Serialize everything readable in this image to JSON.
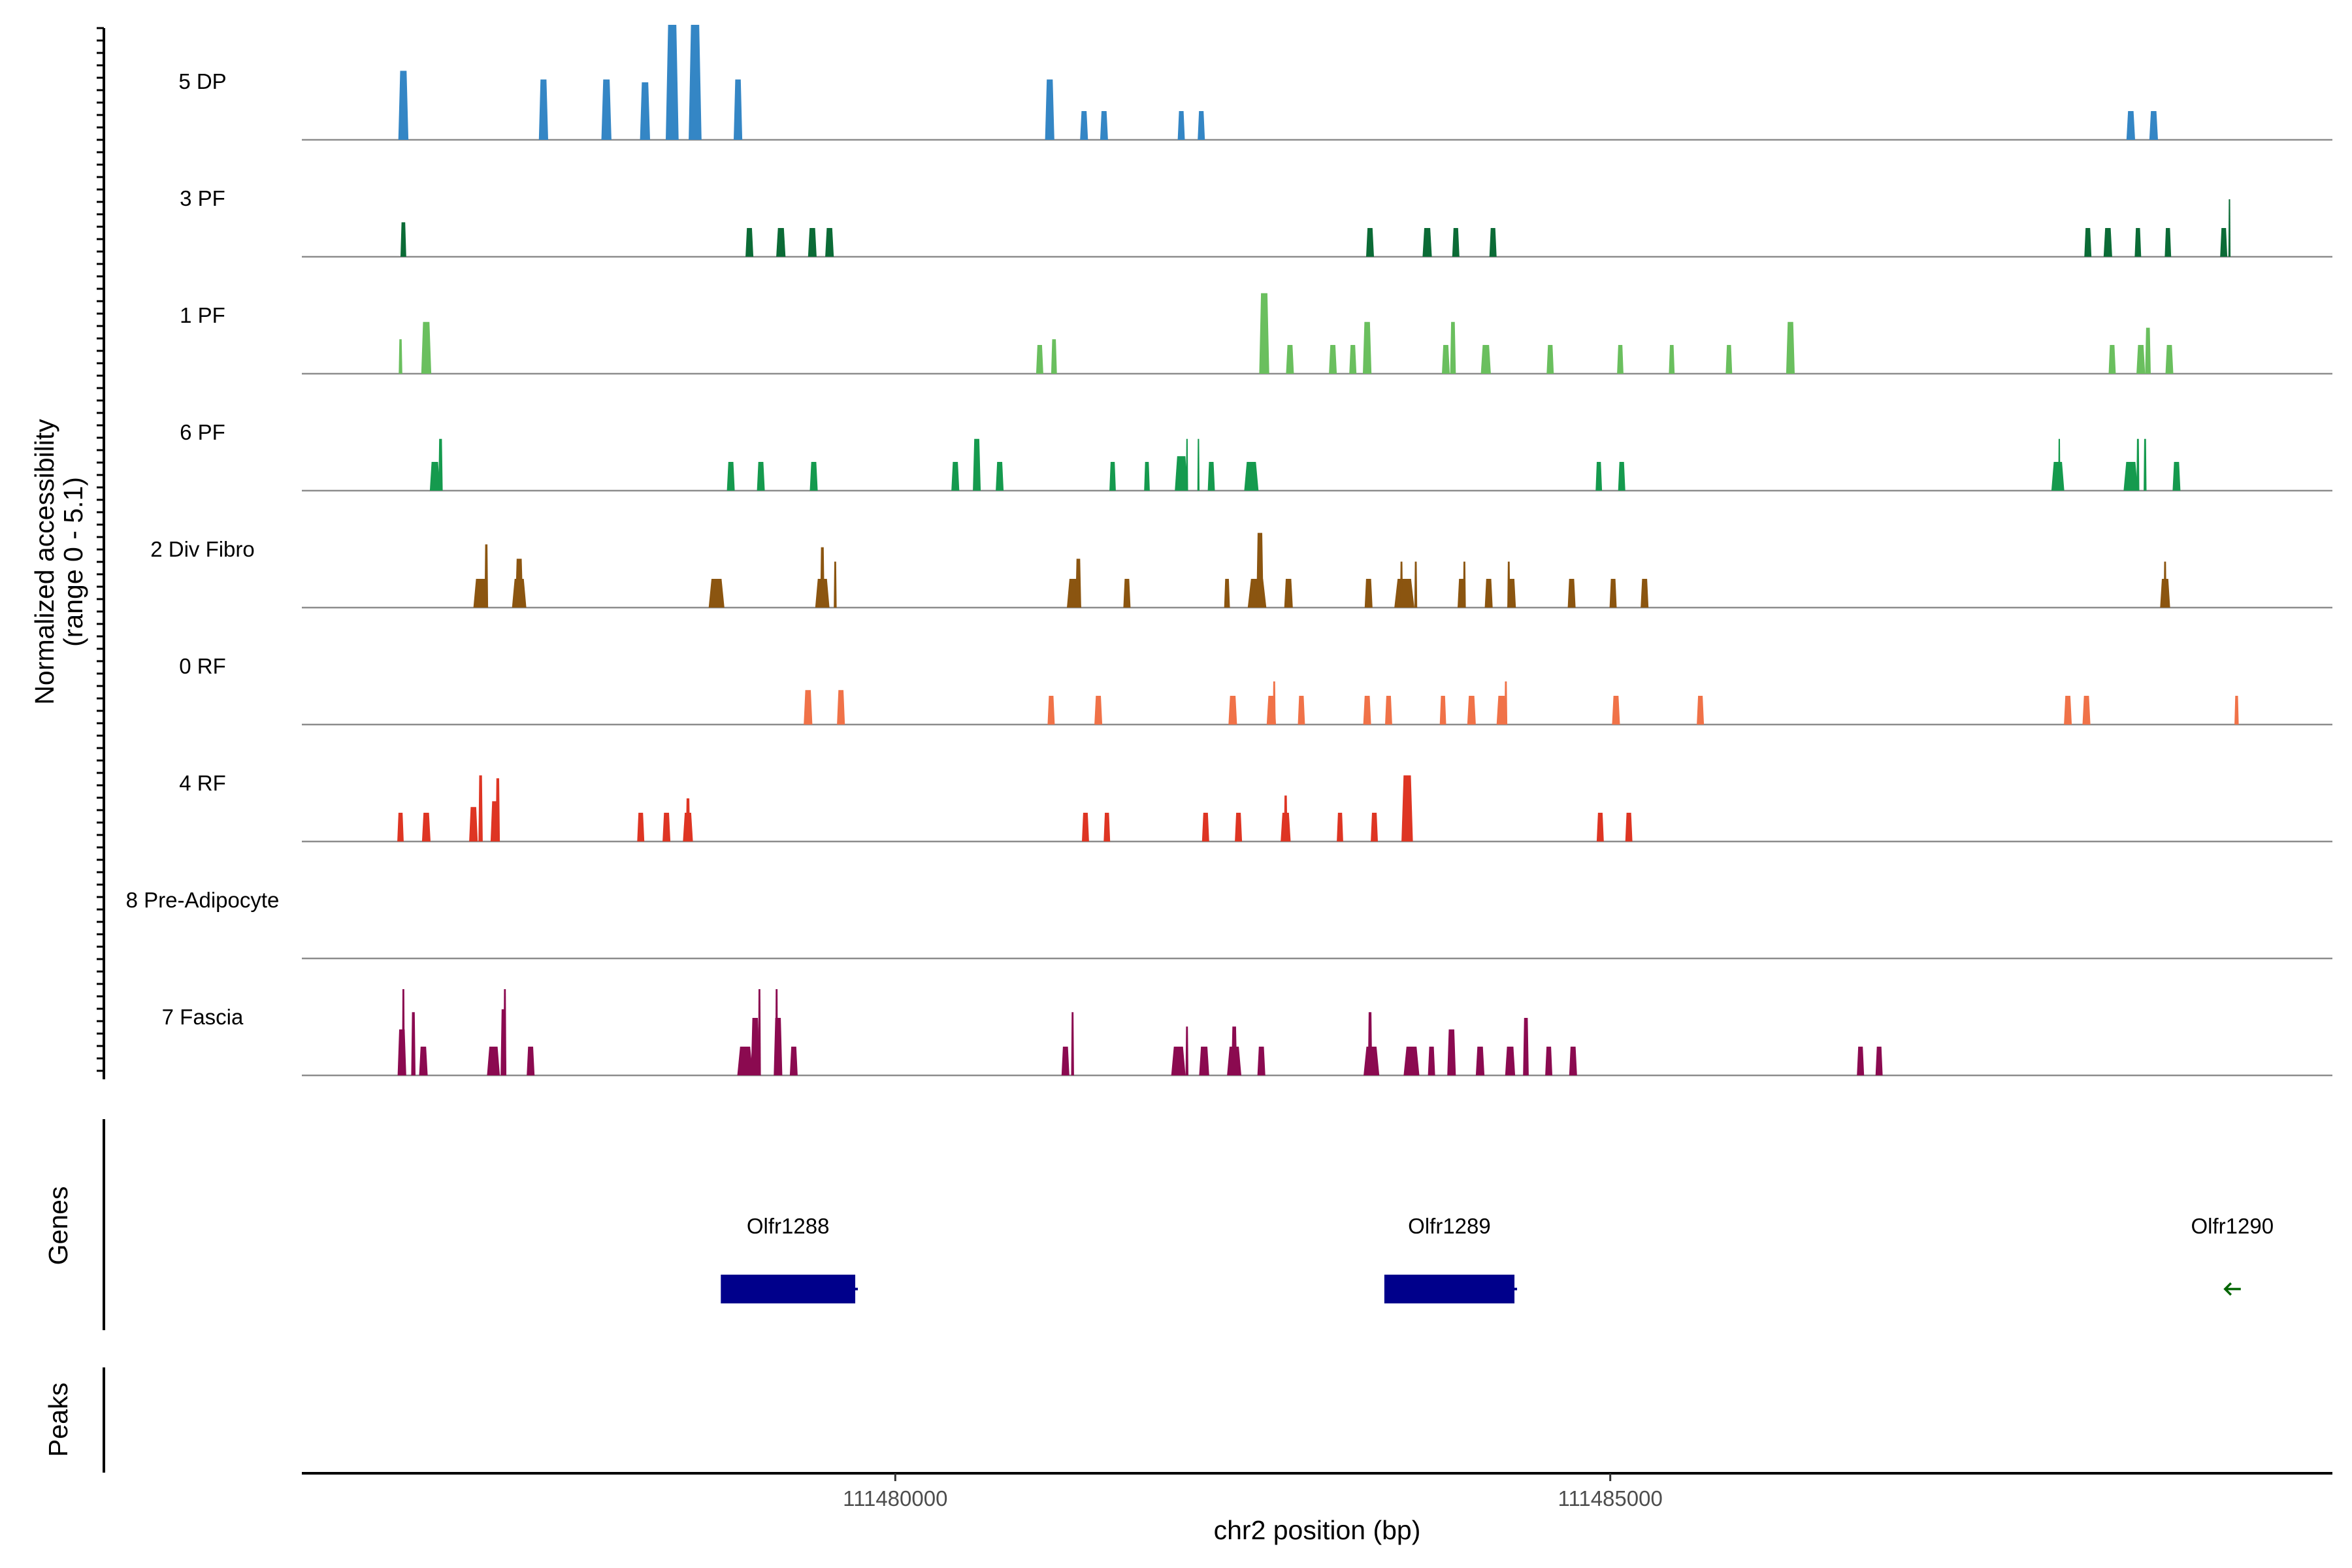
{
  "chart_data": {
    "type": "area",
    "title": "",
    "ylabel": "Normalized accessibility",
    "ylabel_range": "(range 0 - 5.1)",
    "xlabel": "chr2 position (bp)",
    "xlim": [
      111475850,
      111490050
    ],
    "ylim": [
      0,
      5.1
    ],
    "x_ticks": [
      111480000,
      111485000
    ],
    "x_tick_labels": [
      "111480000",
      "111485000"
    ],
    "tracks": [
      {
        "name": "5 DP",
        "color": "#3486C5",
        "peaks": [
          [
            111476560,
            70,
            2.4
          ],
          [
            111477540,
            65,
            2.1
          ],
          [
            111477980,
            70,
            2.1
          ],
          [
            111478250,
            70,
            2.0
          ],
          [
            111478440,
            90,
            4.0
          ],
          [
            111478600,
            90,
            4.0
          ],
          [
            111478900,
            60,
            2.1
          ],
          [
            111481080,
            65,
            2.1
          ],
          [
            111481320,
            55,
            1.0
          ],
          [
            111481460,
            55,
            1.0
          ],
          [
            111482000,
            50,
            1.0
          ],
          [
            111482140,
            50,
            1.0
          ],
          [
            111488640,
            60,
            1.0
          ],
          [
            111488800,
            60,
            1.0
          ]
        ]
      },
      {
        "name": "3 PF",
        "color": "#0B6B36",
        "peaks": [
          [
            111476560,
            40,
            1.2
          ],
          [
            111478980,
            55,
            1.0
          ],
          [
            111479200,
            65,
            1.0
          ],
          [
            111479420,
            60,
            1.0
          ],
          [
            111479540,
            60,
            1.0
          ],
          [
            111483320,
            55,
            1.0
          ],
          [
            111483720,
            65,
            1.0
          ],
          [
            111483920,
            50,
            1.0
          ],
          [
            111484180,
            50,
            1.0
          ],
          [
            111488340,
            50,
            1.0
          ],
          [
            111488480,
            60,
            1.0
          ],
          [
            111488690,
            45,
            1.0
          ],
          [
            111488900,
            45,
            1.0
          ],
          [
            111489290,
            50,
            1.0
          ],
          [
            111489330,
            15,
            2.0
          ]
        ]
      },
      {
        "name": "1 PF",
        "color": "#6ABF5E",
        "peaks": [
          [
            111476540,
            25,
            1.2
          ],
          [
            111476720,
            70,
            1.8
          ],
          [
            111481010,
            50,
            1.0
          ],
          [
            111481110,
            40,
            1.2
          ],
          [
            111482580,
            70,
            2.8
          ],
          [
            111482760,
            55,
            1.0
          ],
          [
            111483060,
            55,
            1.0
          ],
          [
            111483200,
            50,
            1.0
          ],
          [
            111483300,
            60,
            1.8
          ],
          [
            111483850,
            55,
            1.0
          ],
          [
            111483900,
            40,
            1.8
          ],
          [
            111484130,
            70,
            1.0
          ],
          [
            111484580,
            50,
            1.0
          ],
          [
            111485070,
            45,
            1.0
          ],
          [
            111485430,
            40,
            1.0
          ],
          [
            111485830,
            45,
            1.0
          ],
          [
            111486260,
            60,
            1.8
          ],
          [
            111488510,
            50,
            1.0
          ],
          [
            111488710,
            60,
            1.0
          ],
          [
            111488760,
            40,
            1.6
          ],
          [
            111488910,
            55,
            1.0
          ]
        ]
      },
      {
        "name": "6 PF",
        "color": "#159A4E",
        "peaks": [
          [
            111476780,
            70,
            1.0
          ],
          [
            111476820,
            30,
            1.8
          ],
          [
            111478850,
            55,
            1.0
          ],
          [
            111479060,
            55,
            1.0
          ],
          [
            111479430,
            55,
            1.0
          ],
          [
            111480420,
            55,
            1.0
          ],
          [
            111480570,
            55,
            1.8
          ],
          [
            111480730,
            55,
            1.0
          ],
          [
            111481520,
            45,
            1.0
          ],
          [
            111481760,
            40,
            1.0
          ],
          [
            111482000,
            90,
            1.2
          ],
          [
            111482040,
            15,
            1.8
          ],
          [
            111482120,
            15,
            1.8
          ],
          [
            111482210,
            50,
            1.0
          ],
          [
            111482490,
            100,
            1.0
          ],
          [
            111484920,
            45,
            1.0
          ],
          [
            111485080,
            50,
            1.0
          ],
          [
            111488130,
            90,
            1.0
          ],
          [
            111488140,
            15,
            1.8
          ],
          [
            111488640,
            100,
            1.0
          ],
          [
            111488690,
            20,
            1.8
          ],
          [
            111488740,
            20,
            1.8
          ],
          [
            111488960,
            55,
            1.0
          ]
        ]
      },
      {
        "name": "2 Div Fibro",
        "color": "#8B5510",
        "peaks": [
          [
            111477100,
            100,
            1.0
          ],
          [
            111477140,
            25,
            2.2
          ],
          [
            111477370,
            100,
            1.0
          ],
          [
            111477370,
            55,
            1.7
          ],
          [
            111478750,
            110,
            1.0
          ],
          [
            111479490,
            100,
            1.0
          ],
          [
            111479490,
            30,
            2.1
          ],
          [
            111479580,
            20,
            1.6
          ],
          [
            111481250,
            100,
            1.0
          ],
          [
            111481280,
            40,
            1.7
          ],
          [
            111481620,
            50,
            1.0
          ],
          [
            111482320,
            40,
            1.0
          ],
          [
            111482530,
            130,
            1.0
          ],
          [
            111482550,
            50,
            2.6
          ],
          [
            111482750,
            60,
            1.0
          ],
          [
            111483310,
            55,
            1.0
          ],
          [
            111483560,
            140,
            1.0
          ],
          [
            111483540,
            20,
            1.6
          ],
          [
            111483640,
            20,
            1.6
          ],
          [
            111483960,
            55,
            1.0
          ],
          [
            111483980,
            20,
            1.6
          ],
          [
            111484150,
            55,
            1.0
          ],
          [
            111484310,
            60,
            1.0
          ],
          [
            111484290,
            20,
            1.6
          ],
          [
            111484730,
            55,
            1.0
          ],
          [
            111485020,
            50,
            1.0
          ],
          [
            111485240,
            55,
            1.0
          ],
          [
            111488880,
            70,
            1.0
          ],
          [
            111488880,
            20,
            1.6
          ]
        ]
      },
      {
        "name": "0 RF",
        "color": "#F07248",
        "peaks": [
          [
            111479390,
            60,
            1.2
          ],
          [
            111479620,
            55,
            1.2
          ],
          [
            111481090,
            50,
            1.0
          ],
          [
            111481420,
            55,
            1.0
          ],
          [
            111482360,
            60,
            1.0
          ],
          [
            111482630,
            65,
            1.0
          ],
          [
            111482650,
            20,
            1.5
          ],
          [
            111482840,
            50,
            1.0
          ],
          [
            111483300,
            55,
            1.0
          ],
          [
            111483450,
            50,
            1.0
          ],
          [
            111483830,
            45,
            1.0
          ],
          [
            111484030,
            60,
            1.0
          ],
          [
            111484240,
            70,
            1.0
          ],
          [
            111484270,
            20,
            1.5
          ],
          [
            111485040,
            55,
            1.0
          ],
          [
            111485630,
            50,
            1.0
          ],
          [
            111488200,
            55,
            1.0
          ],
          [
            111488330,
            55,
            1.0
          ],
          [
            111489380,
            30,
            1.0
          ]
        ]
      },
      {
        "name": "4 RF",
        "color": "#DE3523",
        "peaks": [
          [
            111476540,
            45,
            1.0
          ],
          [
            111476720,
            60,
            1.0
          ],
          [
            111477050,
            60,
            1.2
          ],
          [
            111477100,
            30,
            2.3
          ],
          [
            111477200,
            60,
            1.4
          ],
          [
            111477220,
            30,
            2.2
          ],
          [
            111478220,
            50,
            1.0
          ],
          [
            111478400,
            55,
            1.0
          ],
          [
            111478550,
            70,
            1.0
          ],
          [
            111478550,
            30,
            1.5
          ],
          [
            111481330,
            50,
            1.0
          ],
          [
            111481480,
            45,
            1.0
          ],
          [
            111482170,
            50,
            1.0
          ],
          [
            111482400,
            50,
            1.0
          ],
          [
            111482730,
            70,
            1.0
          ],
          [
            111482730,
            25,
            1.6
          ],
          [
            111483110,
            45,
            1.0
          ],
          [
            111483350,
            50,
            1.0
          ],
          [
            111483580,
            80,
            2.3
          ],
          [
            111484930,
            50,
            1.0
          ],
          [
            111485130,
            50,
            1.0
          ]
        ]
      },
      {
        "name": "8 Pre-Adipocyte",
        "color": "#F28E2B",
        "peaks": []
      },
      {
        "name": "7 Fascia",
        "color": "#8B0A50",
        "peaks": [
          [
            111476550,
            60,
            1.6
          ],
          [
            111476560,
            20,
            3.0
          ],
          [
            111476630,
            30,
            2.2
          ],
          [
            111476700,
            60,
            1.0
          ],
          [
            111477190,
            90,
            1.0
          ],
          [
            111477260,
            40,
            2.3
          ],
          [
            111477270,
            20,
            3.0
          ],
          [
            111477450,
            55,
            1.0
          ],
          [
            111478950,
            110,
            1.0
          ],
          [
            111479020,
            60,
            2.0
          ],
          [
            111479050,
            20,
            3.0
          ],
          [
            111479180,
            60,
            2.0
          ],
          [
            111479170,
            20,
            3.0
          ],
          [
            111479290,
            55,
            1.0
          ],
          [
            111481190,
            55,
            1.0
          ],
          [
            111481240,
            20,
            2.2
          ],
          [
            111481980,
            100,
            1.0
          ],
          [
            111482040,
            20,
            1.7
          ],
          [
            111482160,
            70,
            1.0
          ],
          [
            111482370,
            100,
            1.0
          ],
          [
            111482370,
            40,
            1.7
          ],
          [
            111482560,
            55,
            1.0
          ],
          [
            111483330,
            110,
            1.0
          ],
          [
            111483320,
            30,
            2.2
          ],
          [
            111483610,
            110,
            1.0
          ],
          [
            111483750,
            50,
            1.0
          ],
          [
            111483890,
            60,
            1.6
          ],
          [
            111484090,
            60,
            1.0
          ],
          [
            111484300,
            70,
            1.0
          ],
          [
            111484410,
            40,
            2.0
          ],
          [
            111484570,
            50,
            1.0
          ],
          [
            111484740,
            55,
            1.0
          ],
          [
            111486750,
            50,
            1.0
          ],
          [
            111486880,
            50,
            1.0
          ]
        ]
      }
    ],
    "genes_label": "Genes",
    "peaks_label": "Peaks",
    "genes": [
      {
        "name": "Olfr1288",
        "start": 111478780,
        "end": 111479720,
        "strand": "+",
        "color": "#00008B"
      },
      {
        "name": "Olfr1289",
        "start": 111483420,
        "end": 111484330,
        "strand": "+",
        "color": "#00008B"
      },
      {
        "name": "Olfr1290",
        "start": 111489320,
        "end": 111489380,
        "strand": "-",
        "color": "#006400"
      }
    ]
  }
}
